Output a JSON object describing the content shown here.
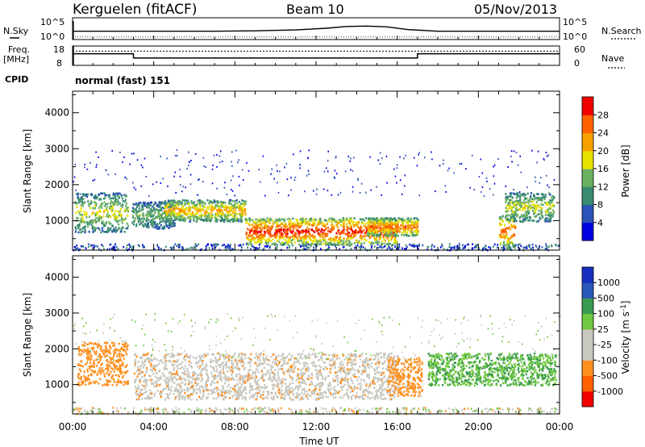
{
  "header": {
    "station": "Kerguelen (fitACF)",
    "beam": "Beam 10",
    "date": "05/Nov/2013"
  },
  "labels": {
    "nsky": "N.Sky",
    "nsearch": "N.Search",
    "freq_line1": "Freq.",
    "freq_line2": "[MHz]",
    "nave": "Nave",
    "cpid": "CPID",
    "cpid_value": "normal (fast) 151"
  },
  "axes": {
    "noise_ticks": [
      "10^5",
      "10^0"
    ],
    "freq_ticks": [
      "18",
      "8"
    ],
    "nave_ticks": [
      "60",
      "0"
    ]
  },
  "chart_data": [
    {
      "type": "line",
      "name": "noise",
      "x_range_hours": [
        0,
        24
      ],
      "ylim_log10": [
        0,
        5
      ],
      "series": [
        {
          "name": "N.Sky",
          "x": [
            0,
            1,
            3,
            5,
            7,
            9,
            11,
            12.5,
            13.5,
            14.5,
            15.5,
            16.5,
            18,
            20,
            22,
            24
          ],
          "values_log10": [
            1.9,
            1.9,
            1.9,
            1.9,
            1.9,
            2.0,
            2.2,
            2.6,
            3.0,
            3.1,
            2.9,
            2.3,
            1.9,
            1.9,
            1.9,
            1.9
          ]
        }
      ]
    },
    {
      "type": "line",
      "name": "frequency",
      "x_range_hours": [
        0,
        24
      ],
      "ylim": [
        8,
        18
      ],
      "series": [
        {
          "name": "Freq.",
          "x": [
            0,
            3,
            3,
            17,
            17,
            24
          ],
          "values": [
            14,
            14,
            11.8,
            11.8,
            14,
            14
          ]
        },
        {
          "name": "Nave",
          "x": [
            0,
            24
          ],
          "values_nave": [
            44,
            44
          ]
        }
      ]
    },
    {
      "type": "heatmap",
      "title": "",
      "xlabel": "Time UT",
      "ylabel": "Slant Range [km]",
      "x_ticks": [
        "00:00",
        "04:00",
        "08:00",
        "12:00",
        "16:00",
        "20:00",
        "00:00"
      ],
      "y_ticks": [
        "1000",
        "2000",
        "3000",
        "4000"
      ],
      "ylim": [
        180,
        4600
      ],
      "colorbar_label": "Power [dB]",
      "colorbar_ticks": [
        "28",
        "24",
        "20",
        "16",
        "12",
        "8",
        "4"
      ],
      "colors": [
        "#0000e0",
        "#2a52b8",
        "#3a8a72",
        "#6ab060",
        "#e8e000",
        "#f5a000",
        "#ff6000",
        "#f00000"
      ],
      "legend_position": "right",
      "features": [
        {
          "t": [
            0.1,
            2.7
          ],
          "range": [
            700,
            1800
          ],
          "level": 4
        },
        {
          "t": [
            2.9,
            5
          ],
          "range": [
            800,
            1550
          ],
          "level": 3
        },
        {
          "t": [
            4.5,
            8.5
          ],
          "range": [
            1000,
            1600
          ],
          "level": 5
        },
        {
          "t": [
            8.5,
            16
          ],
          "range": [
            550,
            1300
          ],
          "level": 7
        },
        {
          "t": [
            14.5,
            17
          ],
          "range": [
            600,
            1100
          ],
          "level": 6
        },
        {
          "t": [
            21,
            21.8
          ],
          "range": [
            250,
            1200
          ],
          "level": 6
        },
        {
          "t": [
            21.3,
            23.7
          ],
          "range": [
            1000,
            1800
          ],
          "level": 4
        }
      ]
    },
    {
      "type": "heatmap",
      "title": "",
      "xlabel": "Time UT",
      "ylabel": "Slant Range [km]",
      "x_ticks": [
        "00:00",
        "04:00",
        "08:00",
        "12:00",
        "16:00",
        "20:00",
        "00:00"
      ],
      "y_ticks": [
        "1000",
        "2000",
        "3000",
        "4000"
      ],
      "ylim": [
        180,
        4600
      ],
      "colorbar_label": "Velocity [m s-1]",
      "colorbar_ticks": [
        "1000",
        "500",
        "100",
        "25",
        "-25",
        "-100",
        "-500",
        "-1000"
      ],
      "colors": [
        "#f00000",
        "#ff6000",
        "#ff9020",
        "#c8c8c0",
        "#c8c8c0",
        "#70c840",
        "#3a9a50",
        "#2858b8",
        "#1830c0"
      ],
      "legend_position": "right",
      "features": [
        {
          "t": [
            0.2,
            2.7
          ],
          "range": [
            1000,
            2200
          ],
          "velocity": -250
        },
        {
          "t": [
            3,
            16
          ],
          "range": [
            600,
            1900
          ],
          "velocity": 0
        },
        {
          "t": [
            15.5,
            17.2
          ],
          "range": [
            700,
            1800
          ],
          "velocity": -150
        },
        {
          "t": [
            17.5,
            23.8
          ],
          "range": [
            1200,
            2100
          ],
          "velocity": 200
        }
      ]
    }
  ]
}
